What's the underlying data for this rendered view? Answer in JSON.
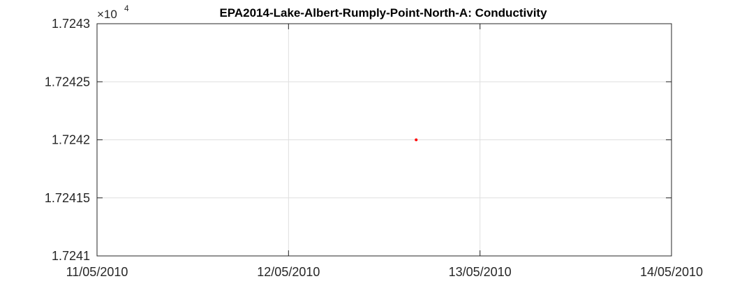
{
  "chart_data": {
    "type": "scatter",
    "title": "EPA2014-Lake-Albert-Rumply-Point-North-A: Conductivity",
    "xlabel": "",
    "ylabel": "",
    "y_multiplier": "×10",
    "y_multiplier_exponent": "4",
    "xlim": [
      "11/05/2010",
      "14/05/2010"
    ],
    "ylim": [
      1.7241,
      1.7243
    ],
    "x_ticks": [
      "11/05/2010",
      "12/05/2010",
      "13/05/2010",
      "14/05/2010"
    ],
    "y_ticks": [
      "1.7241",
      "1.72415",
      "1.7242",
      "1.72425",
      "1.7243"
    ],
    "grid": true,
    "series": [
      {
        "color": "#ff0000",
        "points": [
          {
            "x": "12/05/2010 16:00",
            "y": 1.7242
          }
        ]
      }
    ]
  }
}
